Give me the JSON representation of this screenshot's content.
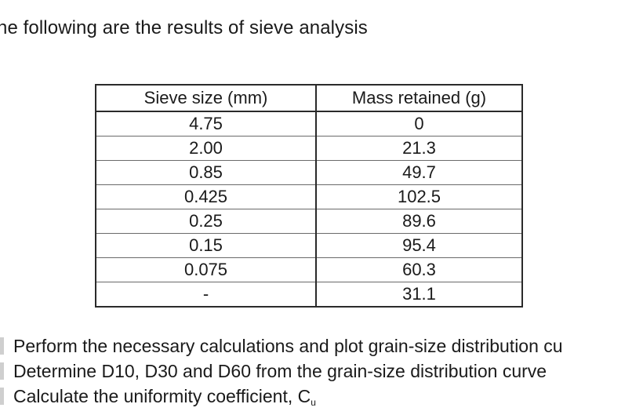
{
  "intro": "he following are the results of sieve analysis",
  "table": {
    "headers": [
      "Sieve size (mm)",
      "Mass retained (g)"
    ],
    "rows": [
      [
        "4.75",
        "0"
      ],
      [
        "2.00",
        "21.3"
      ],
      [
        "0.85",
        "49.7"
      ],
      [
        "0.425",
        "102.5"
      ],
      [
        "0.25",
        "89.6"
      ],
      [
        "0.15",
        "95.4"
      ],
      [
        "0.075",
        "60.3"
      ],
      [
        "-",
        "31.1"
      ]
    ]
  },
  "tasks": {
    "line1": "Perform the necessary calculations and plot grain-size distribution cu",
    "line2": "Determine D10, D30 and D60 from the grain-size distribution curve",
    "line3_main": "Calculate the uniformity coefficient, C",
    "line3_sub": "u"
  }
}
